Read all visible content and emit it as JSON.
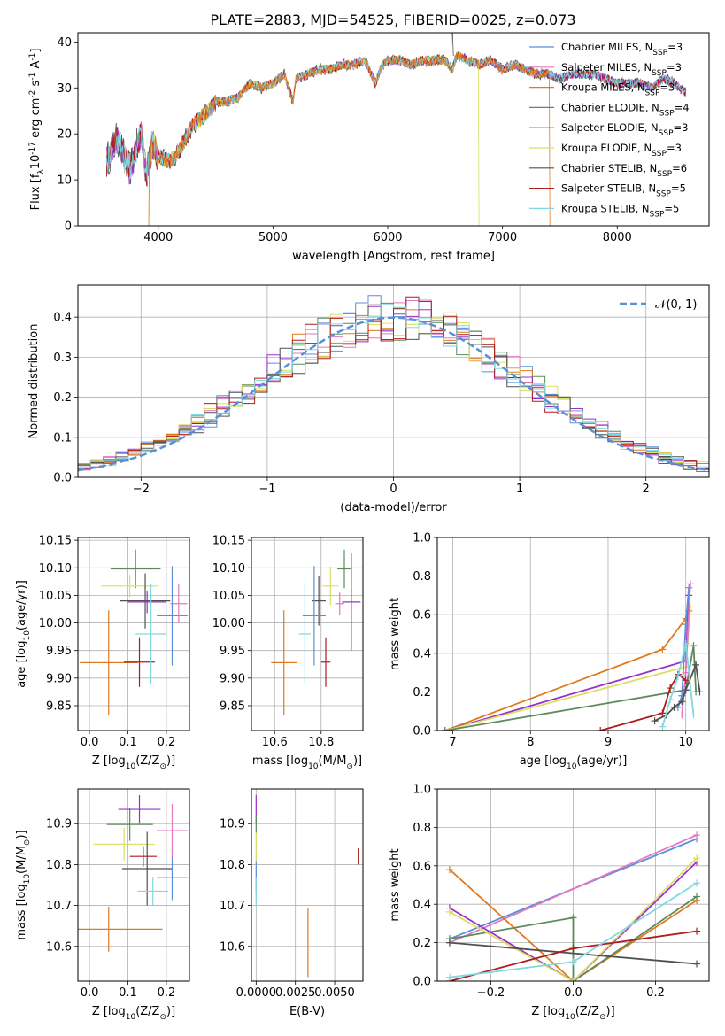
{
  "figure": {
    "title": "PLATE=2883, MJD=54525, FIBERID=0025, z=0.073"
  },
  "series_colors": [
    "#5b8fd9",
    "#e377c2",
    "#e07a1f",
    "#5c8a5c",
    "#9b30c8",
    "#d8e060",
    "#505050",
    "#b01c1c",
    "#80d8e0"
  ],
  "chart_data": [
    {
      "id": "spectrum",
      "type": "line",
      "xlabel": "wavelength [Angstrom, rest frame]",
      "ylabel": "Flux [f",
      "ylabel_sub": "λ",
      "ylabel_tail": "10",
      "ylabel_sup1": "-17",
      "ylabel_tail2": " erg cm",
      "ylabel_sup2": "-2",
      "ylabel_tail3": " s",
      "ylabel_sup3": "-1",
      "ylabel_tail4": " A",
      "ylabel_sup4": "-1",
      "ylabel_end": "]",
      "xlim": [
        3300,
        8800
      ],
      "ylim": [
        0,
        42
      ],
      "xticks": [
        4000,
        5000,
        6000,
        7000,
        8000
      ],
      "yticks": [
        0,
        10,
        20,
        30,
        40
      ],
      "legend_position": "top-right",
      "legend": [
        {
          "name": "Chabrier MILES, N",
          "sub": "SSP",
          "tail": "=3"
        },
        {
          "name": "Salpeter MILES, N",
          "sub": "SSP",
          "tail": "=3"
        },
        {
          "name": "Kroupa MILES, N",
          "sub": "SSP",
          "tail": "=3"
        },
        {
          "name": "Chabrier ELODIE, N",
          "sub": "SSP",
          "tail": "=4"
        },
        {
          "name": "Salpeter ELODIE, N",
          "sub": "SSP",
          "tail": "=3"
        },
        {
          "name": "Kroupa ELODIE, N",
          "sub": "SSP",
          "tail": "=3"
        },
        {
          "name": "Chabrier STELIB, N",
          "sub": "SSP",
          "tail": "=6"
        },
        {
          "name": "Salpeter STELIB, N",
          "sub": "SSP",
          "tail": "=5"
        },
        {
          "name": "Kroupa STELIB, N",
          "sub": "SSP",
          "tail": "=5"
        }
      ],
      "x": [
        3550,
        3600,
        3650,
        3700,
        3750,
        3800,
        3850,
        3900,
        3950,
        4000,
        4100,
        4200,
        4300,
        4400,
        4500,
        4600,
        4700,
        4800,
        4900,
        5000,
        5100,
        5175,
        5200,
        5300,
        5400,
        5500,
        5600,
        5700,
        5800,
        5893,
        5950,
        6000,
        6100,
        6200,
        6300,
        6400,
        6500,
        6563,
        6600,
        6700,
        6800,
        6900,
        7000,
        7100,
        7200,
        7300,
        7400,
        7500,
        7600,
        7700,
        7800,
        7900,
        8000,
        8100,
        8200,
        8300,
        8400,
        8500,
        8600
      ],
      "y": [
        14,
        17,
        19,
        15,
        12,
        16,
        20,
        11,
        18,
        15,
        14,
        17,
        22,
        24,
        27,
        27,
        28,
        31,
        30,
        31,
        33,
        27,
        32,
        33,
        34,
        34,
        35,
        35,
        36,
        31,
        35,
        36,
        36,
        35,
        36,
        36,
        36,
        34,
        37,
        36,
        35,
        36,
        34,
        35,
        34,
        33,
        33,
        32,
        33,
        33,
        33,
        32,
        31,
        31,
        31,
        30,
        32,
        31,
        29
      ],
      "truncations": [
        {
          "series": "Kroupa ELODIE",
          "x_start": 3920,
          "x_end": 6790
        },
        {
          "series": "Kroupa MILES",
          "x_start": 3920,
          "x_end": 7410
        }
      ]
    },
    {
      "id": "residuals",
      "type": "step",
      "xlabel": "(data-model)/error",
      "ylabel": "Normed distribution",
      "xlim": [
        -2.5,
        2.5
      ],
      "ylim": [
        0,
        0.48
      ],
      "xticks": [
        -2,
        -1,
        0,
        1,
        2
      ],
      "yticks": [
        0.0,
        0.1,
        0.2,
        0.3,
        0.4
      ],
      "grid": true,
      "legend_position": "top-right",
      "normal_label": "𝒩(0, 1)",
      "bin_width": 0.1,
      "normal_color": "#5b8fd9"
    },
    {
      "id": "age_vs_Z",
      "type": "errorbar",
      "xlabel": "Z [log",
      "xlabel_sub": "10",
      "xlabel_tail": "(Z/Z",
      "xlabel_sub2": "⊙",
      "xlabel_end": ")]",
      "ylabel": "age  [log",
      "ylabel_sub": "10",
      "ylabel_tail": "(age/yr)]",
      "xlim": [
        -0.03,
        0.26
      ],
      "ylim": [
        9.805,
        10.155
      ],
      "xticks": [
        0.0,
        0.1,
        0.2
      ],
      "yticks": [
        9.85,
        9.9,
        9.95,
        10.0,
        10.05,
        10.1,
        10.15
      ],
      "grid": true,
      "points": [
        {
          "x": 0.05,
          "xerr": 0.075,
          "y": 9.928,
          "yerr": 0.095,
          "c": 2
        },
        {
          "x": 0.12,
          "xerr": 0.065,
          "y": 10.098,
          "yerr": 0.035,
          "c": 3
        },
        {
          "x": 0.105,
          "xerr": 0.075,
          "y": 10.067,
          "yerr": 0.02,
          "c": 5
        },
        {
          "x": 0.145,
          "xerr": 0.065,
          "y": 10.04,
          "yerr": 0.05,
          "c": 6
        },
        {
          "x": 0.15,
          "xerr": 0.05,
          "y": 10.038,
          "yerr": 0.02,
          "c": 4
        },
        {
          "x": 0.13,
          "xerr": 0.04,
          "y": 9.929,
          "yerr": 0.045,
          "c": 7
        },
        {
          "x": 0.16,
          "xerr": 0.04,
          "y": 9.98,
          "yerr": 0.09,
          "c": 8
        },
        {
          "x": 0.215,
          "xerr": 0.04,
          "y": 10.013,
          "yerr": 0.09,
          "c": 0
        },
        {
          "x": 0.232,
          "xerr": 0.022,
          "y": 10.035,
          "yerr": 0.035,
          "c": 1
        }
      ]
    },
    {
      "id": "age_vs_mass",
      "type": "errorbar",
      "xlabel": "mass [log",
      "xlabel_sub": "10",
      "xlabel_tail": "(M/M",
      "xlabel_sub2": "⊙",
      "xlabel_end": ")]",
      "xlim": [
        10.5,
        10.98
      ],
      "ylim": [
        9.805,
        10.155
      ],
      "xticks": [
        10.6,
        10.8
      ],
      "yticks": [
        9.85,
        9.9,
        9.95,
        10.0,
        10.05,
        10.1,
        10.15
      ],
      "grid": true,
      "points": [
        {
          "x": 10.64,
          "xerr": 0.055,
          "y": 9.928,
          "yerr": 0.095,
          "c": 2
        },
        {
          "x": 10.9,
          "xerr": 0.03,
          "y": 10.098,
          "yerr": 0.035,
          "c": 3
        },
        {
          "x": 10.84,
          "xerr": 0.035,
          "y": 10.067,
          "yerr": 0.035,
          "c": 5
        },
        {
          "x": 10.79,
          "xerr": 0.03,
          "y": 10.04,
          "yerr": 0.045,
          "c": 6
        },
        {
          "x": 10.93,
          "xerr": 0.04,
          "y": 10.038,
          "yerr": 0.088,
          "c": 4
        },
        {
          "x": 10.82,
          "xerr": 0.02,
          "y": 9.929,
          "yerr": 0.045,
          "c": 7
        },
        {
          "x": 10.73,
          "xerr": 0.025,
          "y": 9.98,
          "yerr": 0.09,
          "c": 8
        },
        {
          "x": 10.77,
          "xerr": 0.05,
          "y": 10.013,
          "yerr": 0.09,
          "c": 0
        },
        {
          "x": 10.88,
          "xerr": 0.02,
          "y": 10.035,
          "yerr": 0.02,
          "c": 1
        }
      ]
    },
    {
      "id": "weight_vs_age",
      "type": "line",
      "xlabel": "age  [log",
      "xlabel_sub": "10",
      "xlabel_tail": "(age/yr)]",
      "ylabel": "mass weight",
      "xlim": [
        6.8,
        10.3
      ],
      "ylim": [
        0,
        1.0
      ],
      "xticks": [
        7,
        8,
        9,
        10
      ],
      "yticks": [
        0.0,
        0.2,
        0.4,
        0.6,
        0.8,
        1.0
      ],
      "grid": true,
      "series": [
        {
          "c": 2,
          "x": [
            6.9,
            9.7,
            10.0,
            10.04
          ],
          "y": [
            0.0,
            0.42,
            0.58,
            0.62
          ]
        },
        {
          "c": 4,
          "x": [
            6.9,
            10.0,
            10.04
          ],
          "y": [
            0.0,
            0.36,
            0.7
          ]
        },
        {
          "c": 5,
          "x": [
            6.9,
            10.0,
            10.06
          ],
          "y": [
            0.0,
            0.33,
            0.64
          ]
        },
        {
          "c": 3,
          "x": [
            6.9,
            10.0,
            10.1,
            10.13
          ],
          "y": [
            0.0,
            0.21,
            0.44,
            0.2
          ]
        },
        {
          "c": 0,
          "x": [
            9.9,
            9.95,
            10.0,
            10.04
          ],
          "y": [
            0.12,
            0.18,
            0.55,
            0.74
          ]
        },
        {
          "c": 1,
          "x": [
            9.95,
            10.0,
            10.06
          ],
          "y": [
            0.08,
            0.3,
            0.76
          ]
        },
        {
          "c": 6,
          "x": [
            9.6,
            9.75,
            9.85,
            9.95,
            10.0,
            10.13,
            10.18
          ],
          "y": [
            0.05,
            0.08,
            0.12,
            0.15,
            0.21,
            0.34,
            0.2
          ]
        },
        {
          "c": 7,
          "x": [
            8.9,
            9.7,
            9.8,
            9.9,
            10.0
          ],
          "y": [
            0.0,
            0.09,
            0.22,
            0.29,
            0.26
          ]
        },
        {
          "c": 8,
          "x": [
            9.7,
            9.8,
            9.9,
            10.0,
            10.1
          ],
          "y": [
            0.02,
            0.16,
            0.28,
            0.45,
            0.08
          ]
        }
      ]
    },
    {
      "id": "mass_vs_Z",
      "type": "errorbar",
      "xlabel": "Z [log",
      "xlabel_sub": "10",
      "xlabel_tail": "(Z/Z",
      "xlabel_sub2": "⊙",
      "xlabel_end": ")]",
      "ylabel": "mass [log",
      "ylabel_sub": "10",
      "ylabel_tail": "(M/M",
      "ylabel_sub2": "⊙",
      "ylabel_end": ")]",
      "xlim": [
        -0.03,
        0.26
      ],
      "ylim": [
        10.515,
        10.985
      ],
      "xticks": [
        0.0,
        0.1,
        0.2
      ],
      "yticks": [
        10.6,
        10.7,
        10.8,
        10.9
      ],
      "grid": true,
      "points": [
        {
          "x": 0.05,
          "xerr": 0.14,
          "y": 10.642,
          "yerr": 0.055,
          "c": 2
        },
        {
          "x": 0.105,
          "xerr": 0.06,
          "y": 10.898,
          "yerr": 0.04,
          "c": 3
        },
        {
          "x": 0.09,
          "xerr": 0.08,
          "y": 10.85,
          "yerr": 0.04,
          "c": 5
        },
        {
          "x": 0.13,
          "xerr": 0.055,
          "y": 10.935,
          "yerr": 0.035,
          "c": 4
        },
        {
          "x": 0.14,
          "xerr": 0.035,
          "y": 10.82,
          "yerr": 0.025,
          "c": 7
        },
        {
          "x": 0.15,
          "xerr": 0.065,
          "y": 10.79,
          "yerr": 0.09,
          "c": 6
        },
        {
          "x": 0.165,
          "xerr": 0.04,
          "y": 10.735,
          "yerr": 0.035,
          "c": 8
        },
        {
          "x": 0.215,
          "xerr": 0.04,
          "y": 10.768,
          "yerr": 0.055,
          "c": 0
        },
        {
          "x": 0.215,
          "xerr": 0.04,
          "y": 10.883,
          "yerr": 0.065,
          "c": 1
        }
      ]
    },
    {
      "id": "mass_vs_ebv",
      "type": "errorbar",
      "xlabel": "E(B-V)",
      "xlim": [
        -0.0003,
        0.0068
      ],
      "ylim": [
        10.515,
        10.985
      ],
      "xticks": [
        0.0,
        0.0025,
        0.005
      ],
      "xtick_labels": [
        "0.0000",
        "0.0025",
        "0.0050"
      ],
      "yticks": [
        10.6,
        10.7,
        10.8,
        10.9
      ],
      "grid": true,
      "points": [
        {
          "x": 0.0,
          "xerr": 0,
          "y": 10.935,
          "yerr": 0.035,
          "c": 4
        },
        {
          "x": 0.0,
          "xerr": 0,
          "y": 10.85,
          "yerr": 0.04,
          "c": 5
        },
        {
          "x": 0.0,
          "xerr": 0,
          "y": 10.768,
          "yerr": 0.04,
          "c": 0
        },
        {
          "x": 0.0,
          "xerr": 0,
          "y": 10.735,
          "yerr": 0.035,
          "c": 8
        },
        {
          "x": 0.0,
          "xerr": 0,
          "y": 10.898,
          "yerr": 0.02,
          "c": 3
        },
        {
          "x": 0.0033,
          "xerr": 0,
          "y": 10.61,
          "yerr": 0.085,
          "c": 2
        },
        {
          "x": 0.0065,
          "xerr": 0,
          "y": 10.82,
          "yerr": 0.02,
          "c": 7
        }
      ]
    },
    {
      "id": "weight_vs_Z",
      "type": "line",
      "xlabel": "Z [log",
      "xlabel_sub": "10",
      "xlabel_tail": "(Z/Z",
      "xlabel_sub2": "⊙",
      "xlabel_end": ")]",
      "ylabel": "mass weight",
      "xlim": [
        -0.33,
        0.33
      ],
      "ylim": [
        0,
        1.0
      ],
      "xticks": [
        -0.2,
        0.0,
        0.2
      ],
      "yticks": [
        0.0,
        0.2,
        0.4,
        0.6,
        0.8,
        1.0
      ],
      "grid": true,
      "series": [
        {
          "c": 0,
          "x": [
            -0.3,
            0.3
          ],
          "y": [
            0.22,
            0.74
          ]
        },
        {
          "c": 1,
          "x": [
            -0.3,
            0.3
          ],
          "y": [
            0.2,
            0.76
          ]
        },
        {
          "c": 2,
          "x": [
            -0.3,
            0.0,
            0.3
          ],
          "y": [
            0.58,
            0.0,
            0.42
          ]
        },
        {
          "c": 3,
          "x": [
            -0.3,
            0.0,
            0.0,
            0.3
          ],
          "y": [
            0.22,
            0.33,
            0.0,
            0.44
          ]
        },
        {
          "c": 4,
          "x": [
            -0.3,
            0.0,
            0.3
          ],
          "y": [
            0.38,
            0.0,
            0.62
          ]
        },
        {
          "c": 5,
          "x": [
            -0.3,
            0.0,
            0.3
          ],
          "y": [
            0.36,
            0.0,
            0.64
          ]
        },
        {
          "c": 6,
          "x": [
            -0.3,
            0.3
          ],
          "y": [
            0.2,
            0.09
          ]
        },
        {
          "c": 7,
          "x": [
            -0.3,
            0.0,
            0.3
          ],
          "y": [
            0.0,
            0.17,
            0.26
          ]
        },
        {
          "c": 8,
          "x": [
            -0.3,
            0.0,
            0.3
          ],
          "y": [
            0.02,
            0.1,
            0.51
          ]
        }
      ]
    }
  ]
}
